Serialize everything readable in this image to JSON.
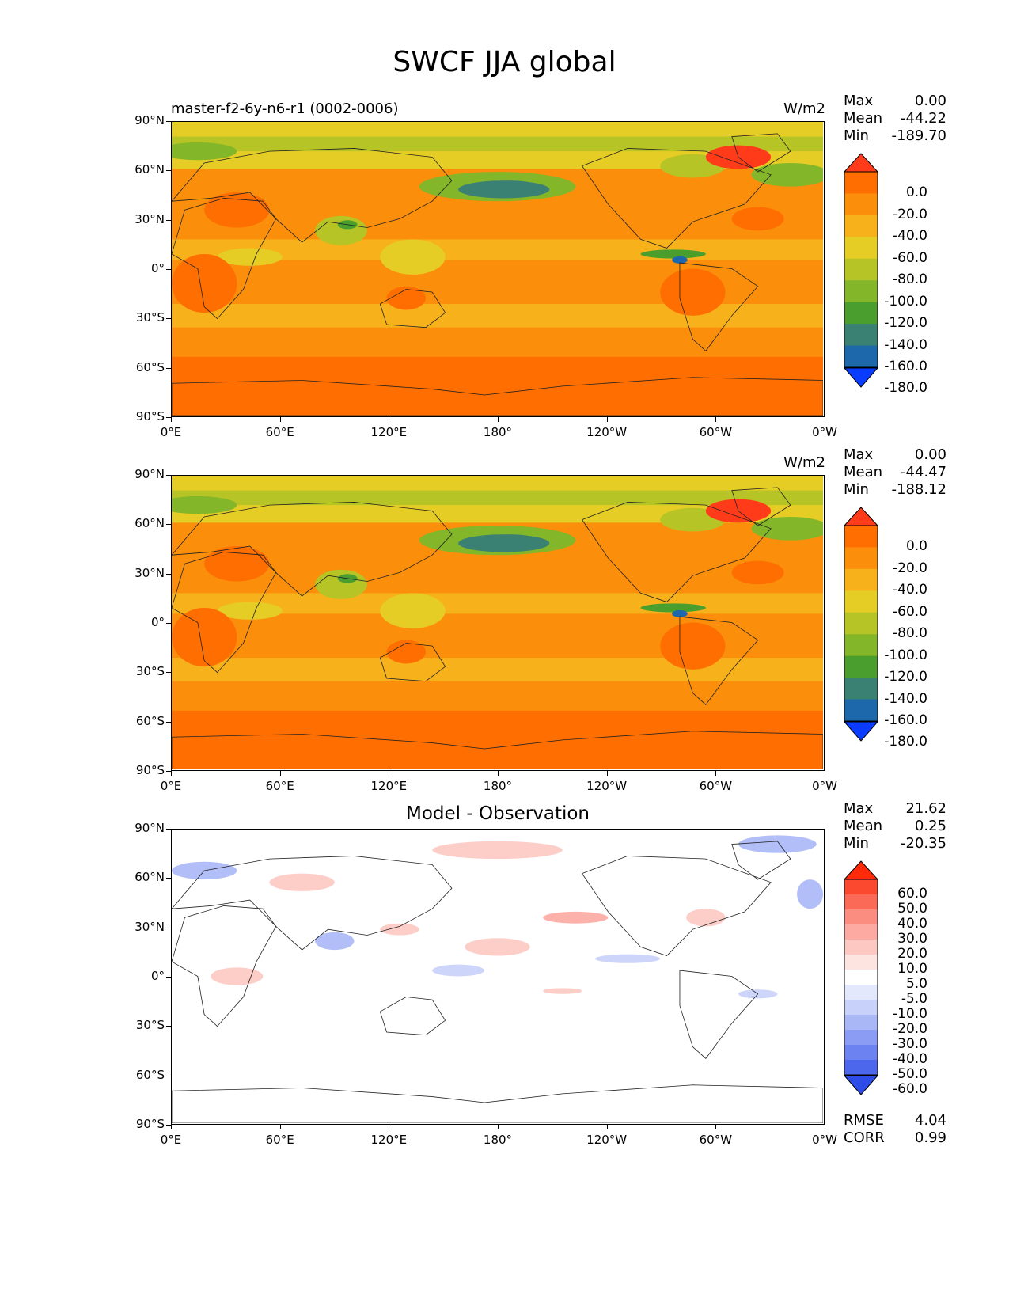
{
  "title": "SWCF JJA global",
  "chart_data": [
    {
      "type": "heatmap",
      "subtitle": "master-f2-6y-n6-r1 (0002-0006)",
      "units": "W/m2",
      "stats": [
        {
          "label": "Max",
          "value": "0.00"
        },
        {
          "label": "Mean",
          "value": "-44.22"
        },
        {
          "label": "Min",
          "value": "-189.70"
        }
      ],
      "y_ticks": [
        "90°N",
        "60°N",
        "30°N",
        "0°",
        "30°S",
        "60°S",
        "90°S"
      ],
      "x_ticks": [
        "0°E",
        "60°E",
        "120°E",
        "180°",
        "120°W",
        "60°W",
        "0°W"
      ],
      "colorbar_levels": [
        "0.0",
        "-20.0",
        "-40.0",
        "-60.0",
        "-80.0",
        "-100.0",
        "-120.0",
        "-140.0",
        "-160.0",
        "-180.0"
      ],
      "colorbar_colors": [
        "#ff3b1a",
        "#fe6e00",
        "#fb8e0b",
        "#f7b11b",
        "#e5cd25",
        "#b6c525",
        "#84b629",
        "#4a9e2e",
        "#3a8173",
        "#1d68aa",
        "#0a3cff"
      ],
      "extend": "both"
    },
    {
      "type": "heatmap",
      "subtitle": "",
      "units": "W/m2",
      "stats": [
        {
          "label": "Max",
          "value": "0.00"
        },
        {
          "label": "Mean",
          "value": "-44.47"
        },
        {
          "label": "Min",
          "value": "-188.12"
        }
      ],
      "y_ticks": [
        "90°N",
        "60°N",
        "30°N",
        "0°",
        "30°S",
        "60°S",
        "90°S"
      ],
      "x_ticks": [
        "0°E",
        "60°E",
        "120°E",
        "180°",
        "120°W",
        "60°W",
        "0°W"
      ],
      "colorbar_levels": [
        "0.0",
        "-20.0",
        "-40.0",
        "-60.0",
        "-80.0",
        "-100.0",
        "-120.0",
        "-140.0",
        "-160.0",
        "-180.0"
      ],
      "colorbar_colors": [
        "#ff3b1a",
        "#fe6e00",
        "#fb8e0b",
        "#f7b11b",
        "#e5cd25",
        "#b6c525",
        "#84b629",
        "#4a9e2e",
        "#3a8173",
        "#1d68aa",
        "#0a3cff"
      ],
      "extend": "both"
    },
    {
      "type": "heatmap",
      "title": "Model - Observation",
      "stats": [
        {
          "label": "Max",
          "value": "21.62"
        },
        {
          "label": "Mean",
          "value": "0.25"
        },
        {
          "label": "Min",
          "value": "-20.35"
        }
      ],
      "extra_stats": [
        {
          "label": "RMSE",
          "value": "4.04"
        },
        {
          "label": "CORR",
          "value": "0.99"
        }
      ],
      "y_ticks": [
        "90°N",
        "60°N",
        "30°N",
        "0°",
        "30°S",
        "60°S",
        "90°S"
      ],
      "x_ticks": [
        "0°E",
        "60°E",
        "120°E",
        "180°",
        "120°W",
        "60°W",
        "0°W"
      ],
      "colorbar_levels": [
        "60.0",
        "50.0",
        "40.0",
        "30.0",
        "20.0",
        "10.0",
        "5.0",
        "-5.0",
        "-10.0",
        "-20.0",
        "-30.0",
        "-40.0",
        "-50.0",
        "-60.0"
      ],
      "colorbar_colors": [
        "#ff2a0a",
        "#fb4930",
        "#fa6a56",
        "#fb8c80",
        "#fcaaa2",
        "#fdc8c2",
        "#fee4e1",
        "#ffffff",
        "#e3e8fc",
        "#c8d1fa",
        "#a9b7f7",
        "#8a9cf3",
        "#6c82f0",
        "#4c67ec",
        "#2d4ce8"
      ],
      "extend": "both"
    }
  ]
}
